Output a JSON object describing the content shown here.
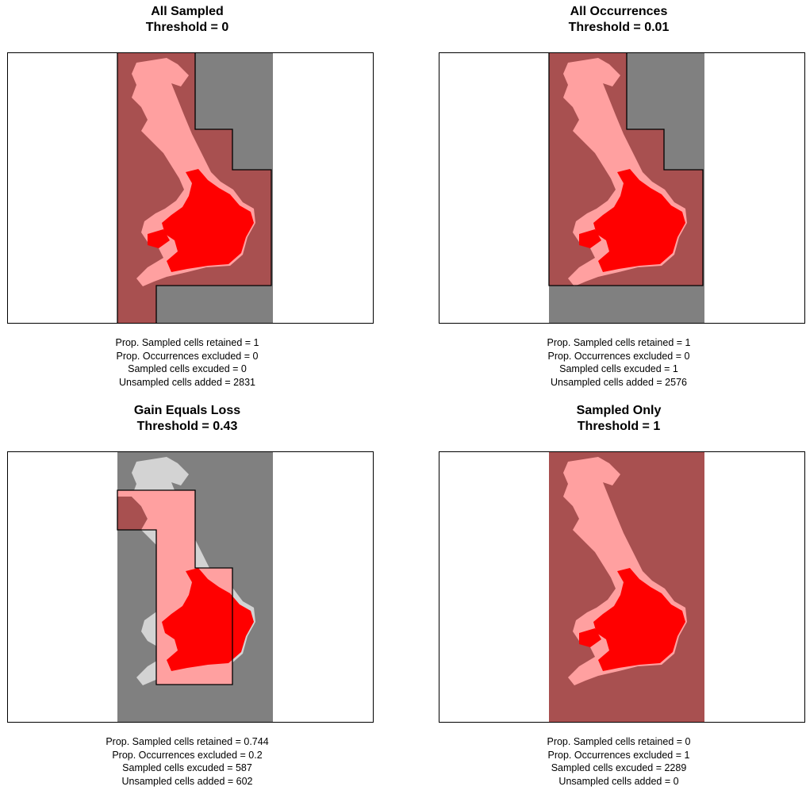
{
  "colors": {
    "unsampled": "#808080",
    "selected_region": "#a85050",
    "sampled_light": "#ffa0a0",
    "occurrence": "#ff0000",
    "excluded_sampled": "#d3d3d3",
    "outline": "#000000"
  },
  "chart_data": [
    {
      "type": "heatmap",
      "title": "All Sampled",
      "subtitle": "Threshold =  0",
      "threshold": 0,
      "stats": {
        "prop_sampled_retained": "Prop. Sampled cells retained = 1",
        "prop_occurrences_excluded": "Prop. Occurrences excluded = 0",
        "sampled_cells_excluded": "Sampled cells excuded = 0",
        "unsampled_cells_added": "Unsampled cells added = 2831"
      },
      "values": {
        "prop_sampled_retained": 1,
        "prop_occurrences_excluded": 0,
        "sampled_cells_excluded": 0,
        "unsampled_cells_added": 2831
      }
    },
    {
      "type": "heatmap",
      "title": "All Occurrences",
      "subtitle": "Threshold =  0.01",
      "threshold": 0.01,
      "stats": {
        "prop_sampled_retained": "Prop. Sampled cells retained = 1",
        "prop_occurrences_excluded": "Prop. Occurrences excluded = 0",
        "sampled_cells_excluded": "Sampled cells excuded = 1",
        "unsampled_cells_added": "Unsampled cells added = 2576"
      },
      "values": {
        "prop_sampled_retained": 1,
        "prop_occurrences_excluded": 0,
        "sampled_cells_excluded": 1,
        "unsampled_cells_added": 2576
      }
    },
    {
      "type": "heatmap",
      "title": "Gain Equals Loss",
      "subtitle": "Threshold =  0.43",
      "threshold": 0.43,
      "stats": {
        "prop_sampled_retained": "Prop. Sampled cells retained = 0.744",
        "prop_occurrences_excluded": "Prop. Occurrences excluded = 0.2",
        "sampled_cells_excluded": "Sampled cells excuded = 587",
        "unsampled_cells_added": "Unsampled cells added = 602"
      },
      "values": {
        "prop_sampled_retained": 0.744,
        "prop_occurrences_excluded": 0.2,
        "sampled_cells_excluded": 587,
        "unsampled_cells_added": 602
      }
    },
    {
      "type": "heatmap",
      "title": "Sampled Only",
      "subtitle": "Threshold =  1",
      "threshold": 1,
      "stats": {
        "prop_sampled_retained": "Prop. Sampled cells retained = 0",
        "prop_occurrences_excluded": "Prop. Occurrences excluded = 1",
        "sampled_cells_excluded": "Sampled cells excuded = 2289",
        "unsampled_cells_added": "Unsampled cells added = 0"
      },
      "values": {
        "prop_sampled_retained": 0,
        "prop_occurrences_excluded": 1,
        "sampled_cells_excluded": 2289,
        "unsampled_cells_added": 0
      }
    }
  ]
}
